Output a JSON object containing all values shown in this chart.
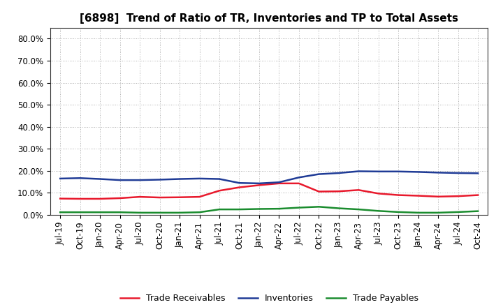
{
  "title": "[6898]  Trend of Ratio of TR, Inventories and TP to Total Assets",
  "xlabels": [
    "Jul-19",
    "Oct-19",
    "Jan-20",
    "Apr-20",
    "Jul-20",
    "Oct-20",
    "Jan-21",
    "Apr-21",
    "Jul-21",
    "Oct-21",
    "Jan-22",
    "Apr-22",
    "Jul-22",
    "Oct-22",
    "Jan-23",
    "Apr-23",
    "Jul-23",
    "Oct-23",
    "Jan-24",
    "Apr-24",
    "Jul-24",
    "Oct-24"
  ],
  "trade_receivables": [
    0.074,
    0.073,
    0.073,
    0.076,
    0.082,
    0.079,
    0.08,
    0.082,
    0.11,
    0.125,
    0.135,
    0.143,
    0.143,
    0.106,
    0.107,
    0.113,
    0.097,
    0.09,
    0.087,
    0.083,
    0.085,
    0.09
  ],
  "inventories": [
    0.165,
    0.167,
    0.163,
    0.158,
    0.158,
    0.16,
    0.163,
    0.165,
    0.163,
    0.145,
    0.143,
    0.148,
    0.17,
    0.185,
    0.19,
    0.198,
    0.197,
    0.197,
    0.195,
    0.192,
    0.19,
    0.189
  ],
  "trade_payables": [
    0.012,
    0.012,
    0.012,
    0.012,
    0.01,
    0.01,
    0.01,
    0.012,
    0.025,
    0.025,
    0.027,
    0.028,
    0.033,
    0.037,
    0.03,
    0.025,
    0.018,
    0.013,
    0.01,
    0.01,
    0.013,
    0.017
  ],
  "tr_color": "#e8192c",
  "inv_color": "#1f3b96",
  "tp_color": "#1a8c2e",
  "ylim": [
    0.0,
    0.85
  ],
  "yticks": [
    0.0,
    0.1,
    0.2,
    0.3,
    0.4,
    0.5,
    0.6,
    0.7,
    0.8
  ],
  "ytick_labels": [
    "0.0%",
    "10.0%",
    "20.0%",
    "30.0%",
    "40.0%",
    "50.0%",
    "60.0%",
    "70.0%",
    "80.0%"
  ],
  "legend_labels": [
    "Trade Receivables",
    "Inventories",
    "Trade Payables"
  ],
  "bg_color": "#ffffff",
  "grid_color": "#999999",
  "line_width": 1.8,
  "title_fontsize": 11,
  "tick_fontsize": 8.5,
  "legend_fontsize": 9
}
